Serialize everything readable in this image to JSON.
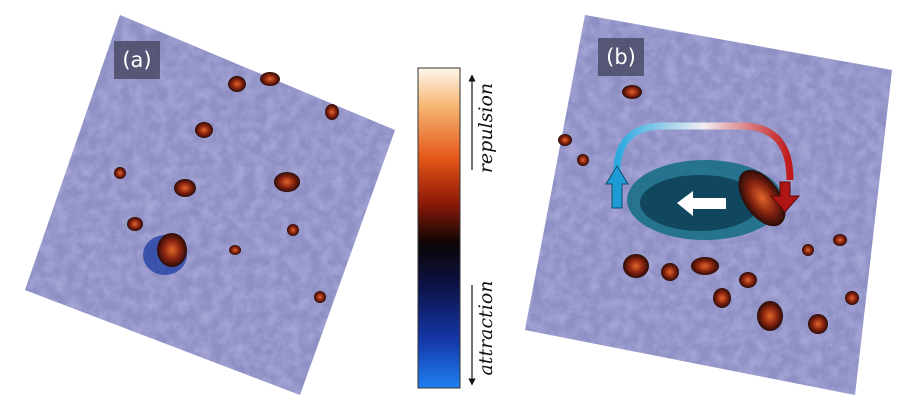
{
  "panels": [
    {
      "label": "(a)"
    },
    {
      "label": "(b)"
    }
  ],
  "colorbar": {
    "top_label": "repulsion",
    "bottom_label": "attraction"
  }
}
